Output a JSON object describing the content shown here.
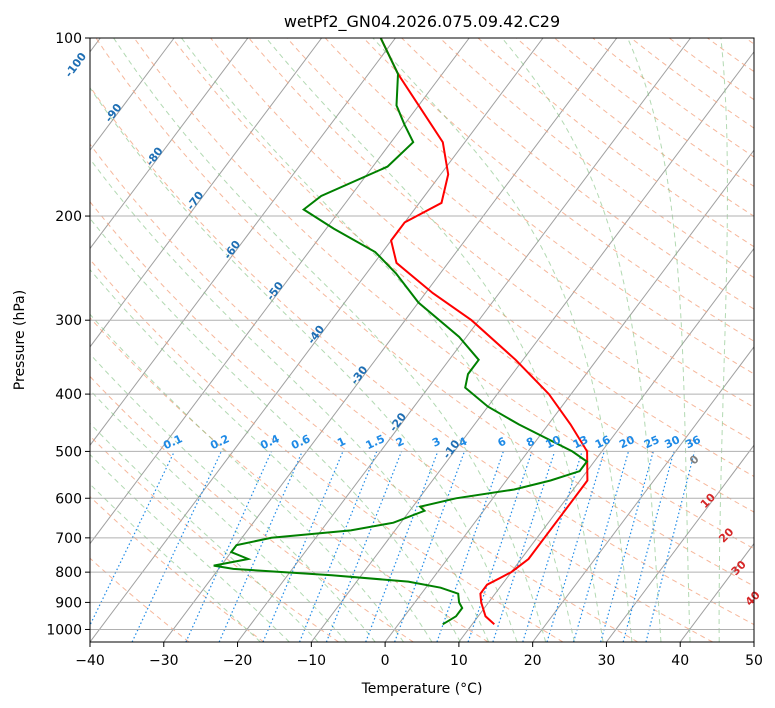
{
  "chart_data": {
    "type": "skew-t",
    "title": "wetPf2_GN04.2026.075.09.42.C29",
    "xlabel": "Temperature (°C)",
    "ylabel": "Pressure (hPa)",
    "xlim": [
      -40,
      50
    ],
    "ylim": [
      1050,
      100
    ],
    "x_ticks": [
      "−40",
      "−30",
      "−20",
      "−10",
      "0",
      "10",
      "20",
      "30",
      "40",
      "50"
    ],
    "y_ticks": [
      {
        "p": 100,
        "label": "100"
      },
      {
        "p": 200,
        "label": "200"
      },
      {
        "p": 300,
        "label": "300"
      },
      {
        "p": 400,
        "label": "400"
      },
      {
        "p": 500,
        "label": "500"
      },
      {
        "p": 600,
        "label": "600"
      },
      {
        "p": 700,
        "label": "700"
      },
      {
        "p": 800,
        "label": "800"
      },
      {
        "p": 900,
        "label": "900"
      },
      {
        "p": 1000,
        "label": "1000"
      }
    ],
    "temperature_profile": {
      "color": "#ff0000",
      "points": [
        {
          "p": 980,
          "t": 13
        },
        {
          "p": 950,
          "t": 11
        },
        {
          "p": 900,
          "t": 9
        },
        {
          "p": 870,
          "t": 8
        },
        {
          "p": 840,
          "t": 8
        },
        {
          "p": 820,
          "t": 9
        },
        {
          "p": 800,
          "t": 10
        },
        {
          "p": 760,
          "t": 11
        },
        {
          "p": 700,
          "t": 11
        },
        {
          "p": 650,
          "t": 11
        },
        {
          "p": 600,
          "t": 11
        },
        {
          "p": 560,
          "t": 11
        },
        {
          "p": 500,
          "t": 8
        },
        {
          "p": 450,
          "t": 3
        },
        {
          "p": 400,
          "t": -3
        },
        {
          "p": 350,
          "t": -11
        },
        {
          "p": 300,
          "t": -21
        },
        {
          "p": 270,
          "t": -29
        },
        {
          "p": 240,
          "t": -37
        },
        {
          "p": 220,
          "t": -40
        },
        {
          "p": 205,
          "t": -40
        },
        {
          "p": 190,
          "t": -37
        },
        {
          "p": 170,
          "t": -39
        },
        {
          "p": 150,
          "t": -43
        },
        {
          "p": 130,
          "t": -50
        },
        {
          "p": 115,
          "t": -56
        },
        {
          "p": 100,
          "t": -62
        }
      ]
    },
    "dewpoint_profile": {
      "color": "#008000",
      "points": [
        {
          "p": 980,
          "t": 6
        },
        {
          "p": 950,
          "t": 7
        },
        {
          "p": 920,
          "t": 7
        },
        {
          "p": 900,
          "t": 6
        },
        {
          "p": 870,
          "t": 5
        },
        {
          "p": 850,
          "t": 2
        },
        {
          "p": 830,
          "t": -3
        },
        {
          "p": 810,
          "t": -14
        },
        {
          "p": 790,
          "t": -28
        },
        {
          "p": 780,
          "t": -31
        },
        {
          "p": 760,
          "t": -27
        },
        {
          "p": 740,
          "t": -30
        },
        {
          "p": 720,
          "t": -30
        },
        {
          "p": 700,
          "t": -26
        },
        {
          "p": 680,
          "t": -16
        },
        {
          "p": 660,
          "t": -11
        },
        {
          "p": 630,
          "t": -8
        },
        {
          "p": 620,
          "t": -9
        },
        {
          "p": 600,
          "t": -5
        },
        {
          "p": 580,
          "t": 2
        },
        {
          "p": 560,
          "t": 6
        },
        {
          "p": 540,
          "t": 9
        },
        {
          "p": 520,
          "t": 9
        },
        {
          "p": 500,
          "t": 6
        },
        {
          "p": 450,
          "t": -4
        },
        {
          "p": 420,
          "t": -10
        },
        {
          "p": 390,
          "t": -15
        },
        {
          "p": 370,
          "t": -16
        },
        {
          "p": 350,
          "t": -16
        },
        {
          "p": 320,
          "t": -21
        },
        {
          "p": 280,
          "t": -30
        },
        {
          "p": 250,
          "t": -36
        },
        {
          "p": 230,
          "t": -41
        },
        {
          "p": 210,
          "t": -49
        },
        {
          "p": 195,
          "t": -55
        },
        {
          "p": 185,
          "t": -54
        },
        {
          "p": 165,
          "t": -48
        },
        {
          "p": 150,
          "t": -47
        },
        {
          "p": 140,
          "t": -50
        },
        {
          "p": 130,
          "t": -53
        },
        {
          "p": 115,
          "t": -56
        },
        {
          "p": 100,
          "t": -62
        }
      ]
    },
    "isotherm_labels": [
      "-100",
      "-90",
      "-80",
      "-70",
      "-60",
      "-50",
      "-40",
      "-30",
      "-20",
      "-10"
    ],
    "mixing_ratio_labels": [
      "0.1",
      "0.2",
      "0.4",
      "0.6",
      "1",
      "1.5",
      "2",
      "3",
      "4",
      "6",
      "8",
      "10",
      "13",
      "16",
      "20",
      "25",
      "30",
      "36"
    ],
    "theta_e_labels": [
      "0",
      "10",
      "20",
      "30",
      "40"
    ],
    "colors": {
      "isotherm": "#a0a0a0",
      "dry_adiabat": "#f4a582",
      "moist_adiabat": "#7fbf7f",
      "mixing_ratio": "#1e8ae6",
      "isotherm_label": "#1f6fb4",
      "theta_label": "#d62728"
    }
  }
}
